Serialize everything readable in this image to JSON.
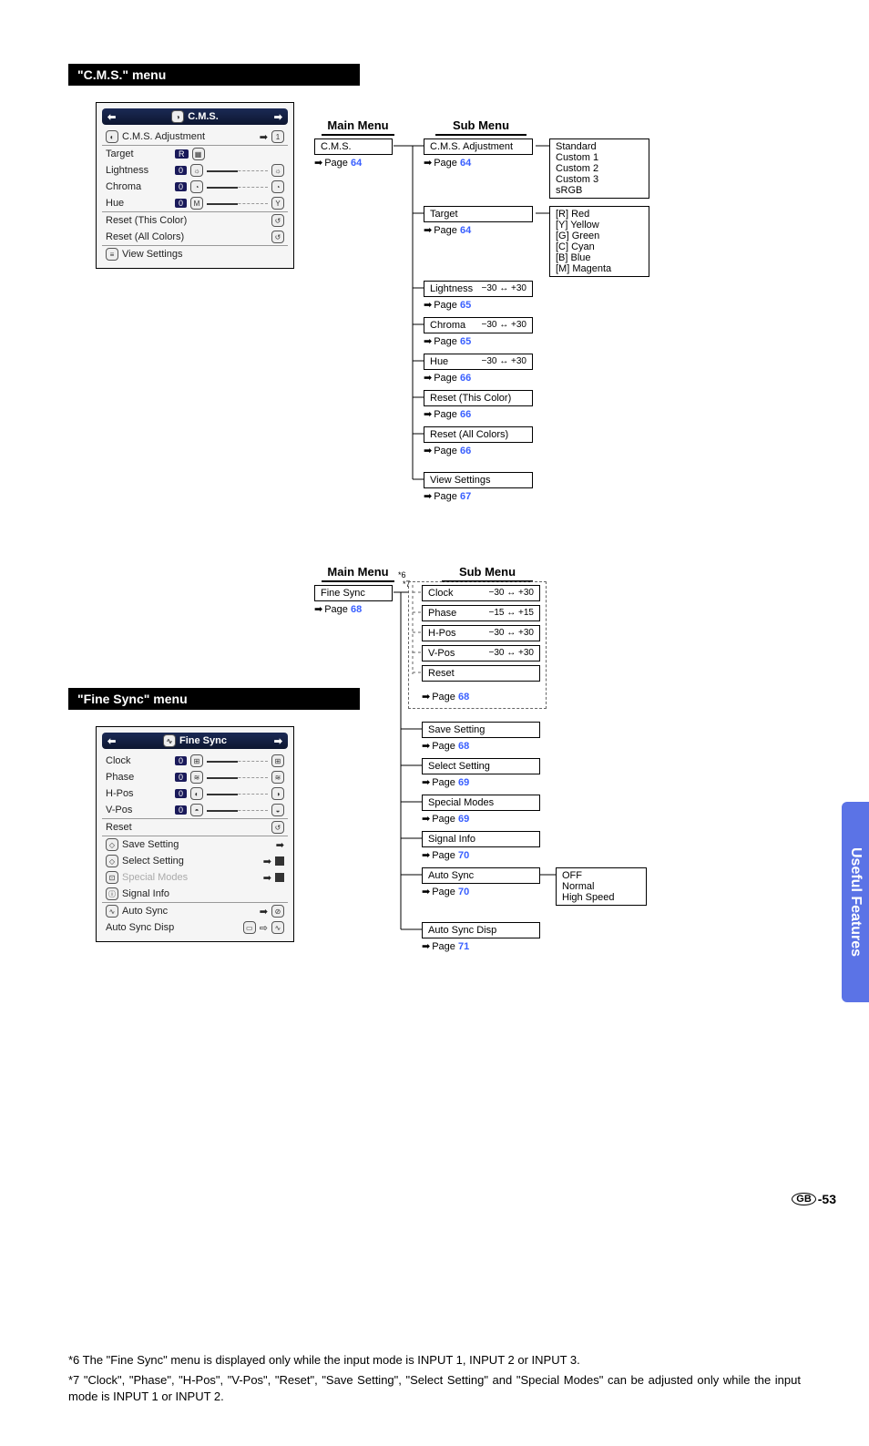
{
  "cms": {
    "header": "\"C.M.S.\" menu",
    "osd": {
      "title": "C.M.S.",
      "rows": {
        "adjust": "C.M.S. Adjustment",
        "adjust_val": "1",
        "target": "Target",
        "target_code": "R",
        "lightness": "Lightness",
        "lightness_val": "0",
        "chroma": "Chroma",
        "chroma_val": "0",
        "hue": "Hue",
        "hue_val": "0",
        "reset_this": "Reset (This Color)",
        "reset_all": "Reset (All Colors)",
        "view": "View Settings"
      }
    },
    "diagram": {
      "main_head": "Main Menu",
      "sub_head": "Sub Menu",
      "main_box": "C.M.S.",
      "main_page": "64",
      "sub": [
        {
          "label": "C.M.S. Adjustment",
          "page": "64"
        },
        {
          "label": "Target",
          "page": "64"
        },
        {
          "label": "Lightness",
          "range": "−30 ↔ +30",
          "page": "65"
        },
        {
          "label": "Chroma",
          "range": "−30 ↔ +30",
          "page": "65"
        },
        {
          "label": "Hue",
          "range": "−30 ↔ +30",
          "page": "66"
        },
        {
          "label": "Reset (This Color)",
          "page": "66"
        },
        {
          "label": "Reset (All Colors)",
          "page": "66"
        },
        {
          "label": "View Settings",
          "page": "67"
        }
      ],
      "leaf1": [
        "Standard",
        "Custom 1",
        "Custom 2",
        "Custom 3",
        "sRGB"
      ],
      "leaf2": [
        "[R]  Red",
        "[Y]  Yellow",
        "[G]  Green",
        "[C]  Cyan",
        "[B]  Blue",
        "[M]  Magenta"
      ]
    }
  },
  "finesync": {
    "header": "\"Fine Sync\" menu",
    "osd": {
      "title": "Fine Sync",
      "clock": "Clock",
      "clock_val": "0",
      "phase": "Phase",
      "phase_val": "0",
      "hpos": "H-Pos",
      "hpos_val": "0",
      "vpos": "V-Pos",
      "vpos_val": "0",
      "reset": "Reset",
      "save": "Save Setting",
      "select": "Select Setting",
      "special": "Special Modes",
      "signal": "Signal Info",
      "autosync": "Auto Sync",
      "autosyncdisp": "Auto Sync Disp"
    },
    "diagram": {
      "main_head": "Main Menu",
      "sub_head": "Sub Menu",
      "main_box": "Fine Sync",
      "main_page": "68",
      "ann6": "*6",
      "ann7": "*7",
      "group1": [
        {
          "label": "Clock",
          "range": "−30 ↔ +30"
        },
        {
          "label": "Phase",
          "range": "−15 ↔ +15"
        },
        {
          "label": "H-Pos",
          "range": "−30 ↔ +30"
        },
        {
          "label": "V-Pos",
          "range": "−30 ↔ +30"
        },
        {
          "label": "Reset"
        }
      ],
      "group1_page": "68",
      "rest": [
        {
          "label": "Save Setting",
          "page": "68"
        },
        {
          "label": "Select Setting",
          "page": "69"
        },
        {
          "label": "Special Modes",
          "page": "69"
        },
        {
          "label": "Signal Info",
          "page": "70"
        },
        {
          "label": "Auto Sync",
          "page": "70"
        },
        {
          "label": "Auto Sync Disp",
          "page": "71"
        }
      ],
      "leaf": [
        "OFF",
        "Normal",
        "High Speed"
      ]
    }
  },
  "footnotes": {
    "n6": "*6   The \"Fine Sync\" menu is displayed only while the input mode is INPUT 1, INPUT 2 or INPUT 3.",
    "n7": "*7   \"Clock\", \"Phase\", \"H-Pos\", \"V-Pos\", \"Reset\", \"Save Setting\", \"Select Setting\" and \"Special Modes\" can be adjusted only while the input mode is INPUT 1 or INPUT 2."
  },
  "sidetab": "Useful Features",
  "footer": {
    "gb": "GB",
    "pg": "-53"
  },
  "colors": {
    "link": "#3a60ff",
    "sidebar": "#5b73e6"
  }
}
